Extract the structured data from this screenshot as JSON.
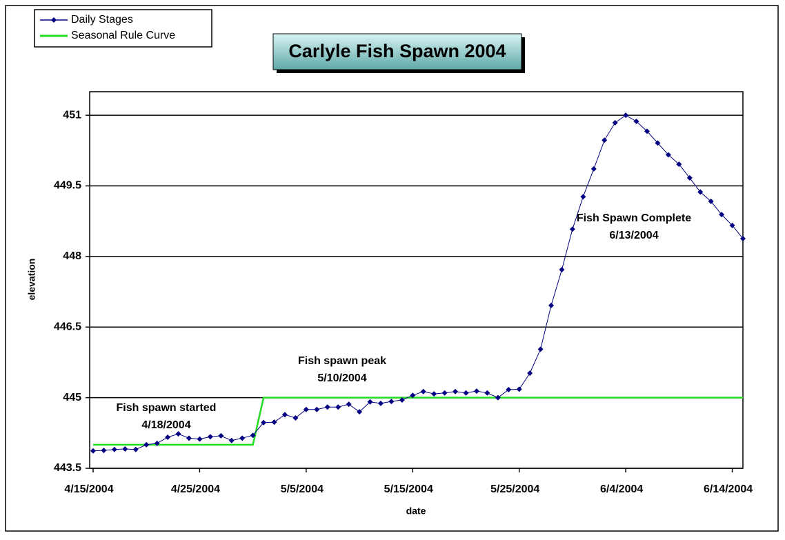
{
  "chart_data": {
    "type": "line",
    "title": "Carlyle Fish Spawn 2004",
    "xlabel": "date",
    "ylabel": "elevation",
    "x": [
      "4/15/2004",
      "4/16/2004",
      "4/17/2004",
      "4/18/2004",
      "4/19/2004",
      "4/20/2004",
      "4/21/2004",
      "4/22/2004",
      "4/23/2004",
      "4/24/2004",
      "4/25/2004",
      "4/26/2004",
      "4/27/2004",
      "4/28/2004",
      "4/29/2004",
      "4/30/2004",
      "5/1/2004",
      "5/2/2004",
      "5/3/2004",
      "5/4/2004",
      "5/5/2004",
      "5/6/2004",
      "5/7/2004",
      "5/8/2004",
      "5/9/2004",
      "5/10/2004",
      "5/11/2004",
      "5/12/2004",
      "5/13/2004",
      "5/14/2004",
      "5/15/2004",
      "5/16/2004",
      "5/17/2004",
      "5/18/2004",
      "5/19/2004",
      "5/20/2004",
      "5/21/2004",
      "5/22/2004",
      "5/23/2004",
      "5/24/2004",
      "5/25/2004",
      "5/26/2004",
      "5/27/2004",
      "5/28/2004",
      "5/29/2004",
      "5/30/2004",
      "5/31/2004",
      "6/1/2004",
      "6/2/2004",
      "6/3/2004",
      "6/4/2004",
      "6/5/2004",
      "6/6/2004",
      "6/7/2004",
      "6/8/2004",
      "6/9/2004",
      "6/10/2004",
      "6/11/2004",
      "6/12/2004",
      "6/13/2004",
      "6/14/2004",
      "6/15/2004"
    ],
    "series": [
      {
        "name": "Daily Stages",
        "color": "#000080",
        "marker": "diamond",
        "values": [
          443.87,
          443.88,
          443.9,
          443.91,
          443.9,
          444.0,
          444.03,
          444.16,
          444.23,
          444.14,
          444.12,
          444.17,
          444.19,
          444.09,
          444.14,
          444.2,
          444.47,
          444.48,
          444.64,
          444.57,
          444.75,
          444.75,
          444.8,
          444.8,
          444.86,
          444.7,
          444.91,
          444.88,
          444.92,
          444.95,
          445.05,
          445.13,
          445.08,
          445.1,
          445.13,
          445.1,
          445.14,
          445.1,
          445.0,
          445.17,
          445.18,
          445.52,
          446.03,
          446.96,
          447.72,
          448.58,
          449.27,
          449.86,
          450.47,
          450.84,
          451.0,
          450.87,
          450.66,
          450.41,
          450.16,
          449.96,
          449.67,
          449.37,
          449.17,
          448.89,
          448.66,
          448.38
        ]
      },
      {
        "name": "Seasonal Rule Curve",
        "color": "#22dd22",
        "marker": "none",
        "x": [
          "4/15/2004",
          "4/30/2004",
          "5/1/2004",
          "6/15/2004"
        ],
        "values": [
          444.0,
          444.0,
          445.0,
          445.0
        ]
      }
    ],
    "xlim": [
      "4/15/2004",
      "6/15/2004"
    ],
    "xticks": [
      "4/15/2004",
      "4/25/2004",
      "5/5/2004",
      "5/15/2004",
      "5/25/2004",
      "6/4/2004",
      "6/14/2004"
    ],
    "ylim": [
      443.5,
      451.5
    ],
    "yticks": [
      443.5,
      445,
      446.5,
      448,
      449.5,
      451
    ],
    "grid": true,
    "legend": "top-left",
    "annotations": [
      {
        "lines": [
          "Fish spawn started",
          "4/18/2004"
        ]
      },
      {
        "lines": [
          "Fish spawn peak",
          "5/10/2004"
        ]
      },
      {
        "lines": [
          "Fish Spawn Complete",
          "6/13/2004"
        ]
      }
    ]
  }
}
